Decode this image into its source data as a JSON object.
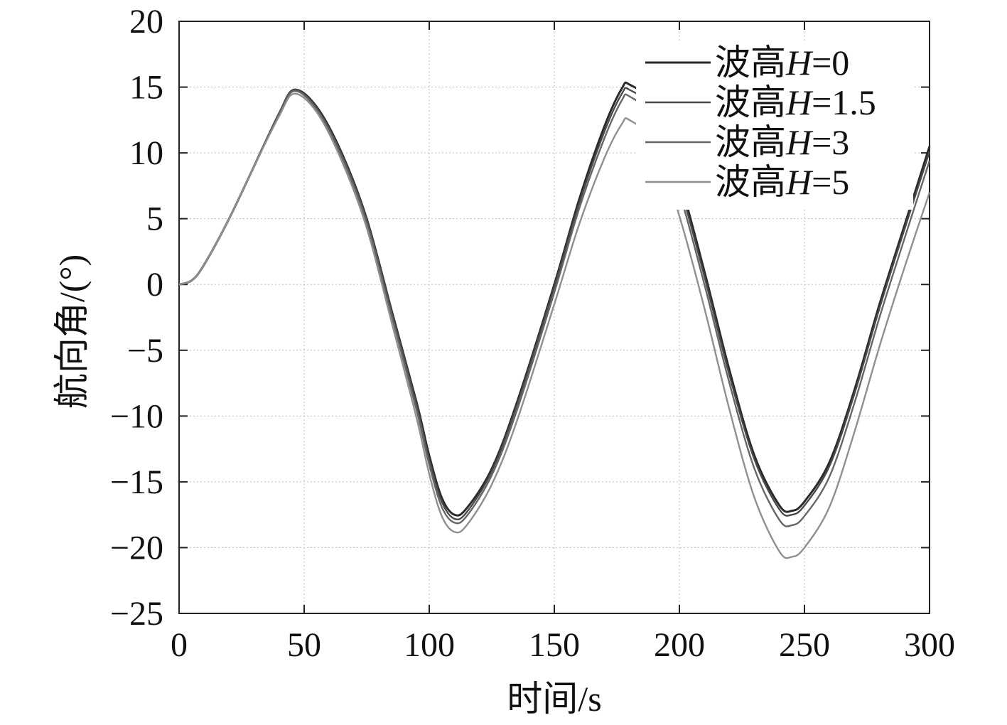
{
  "chart_data": {
    "type": "line",
    "title": "",
    "xlabel": "时间/s",
    "ylabel": "航向角/(°)",
    "xlim": [
      0,
      300
    ],
    "ylim": [
      -25,
      20
    ],
    "xticks": [
      0,
      50,
      100,
      150,
      200,
      250,
      300
    ],
    "yticks": [
      20,
      15,
      10,
      5,
      0,
      -5,
      -10,
      -15,
      -20,
      -25
    ],
    "xtick_labels": [
      "0",
      "50",
      "100",
      "150",
      "200",
      "250",
      "300"
    ],
    "ytick_labels": [
      "20",
      "15",
      "10",
      "5",
      "0",
      "−5",
      "−10",
      "−15",
      "−20",
      "−25"
    ],
    "grid": true,
    "legend_position": "top-right",
    "series": [
      {
        "name_prefix": "波高",
        "name_var": "H",
        "name_value": "=0",
        "color": "#2a2a2a",
        "x": [
          0,
          5,
          10,
          20,
          30,
          40,
          46,
          55,
          65,
          75,
          85,
          95,
          100,
          105,
          110,
          115,
          125,
          135,
          150,
          160,
          170,
          177,
          180,
          190,
          200,
          210,
          220,
          230,
          240,
          245,
          250,
          260,
          270,
          280,
          290,
          300
        ],
        "y": [
          0,
          0.3,
          1.5,
          5,
          9,
          13,
          14.8,
          13.5,
          10,
          5,
          -2,
          -9,
          -13,
          -16.2,
          -17.5,
          -17,
          -14,
          -9,
          0,
          6.5,
          12,
          14.9,
          15.2,
          13.5,
          8,
          1,
          -6.5,
          -13,
          -16.8,
          -17.2,
          -16.5,
          -13.5,
          -8,
          -1.5,
          4.5,
          10.5
        ]
      },
      {
        "name_prefix": "波高",
        "name_var": "H",
        "name_value": "=1.5",
        "color": "#4a4a4a",
        "x": [
          0,
          5,
          10,
          20,
          30,
          40,
          46,
          55,
          65,
          75,
          85,
          95,
          100,
          105,
          110,
          115,
          125,
          135,
          150,
          160,
          170,
          177,
          180,
          190,
          200,
          210,
          220,
          230,
          240,
          245,
          250,
          260,
          270,
          280,
          290,
          300
        ],
        "y": [
          0,
          0.3,
          1.5,
          5,
          9,
          13,
          14.8,
          13.4,
          9.9,
          4.9,
          -2.1,
          -9.2,
          -13.3,
          -16.5,
          -17.8,
          -17.3,
          -14.2,
          -9.2,
          -0.2,
          6.2,
          11.6,
          14.5,
          14.8,
          13.1,
          7.6,
          0.6,
          -6.9,
          -13.3,
          -17.1,
          -17.5,
          -16.8,
          -13.8,
          -8.3,
          -1.8,
          4.2,
          10.1
        ]
      },
      {
        "name_prefix": "波高",
        "name_var": "H",
        "name_value": "=3",
        "color": "#666666",
        "x": [
          0,
          5,
          10,
          20,
          30,
          40,
          46,
          55,
          65,
          75,
          85,
          95,
          100,
          105,
          110,
          115,
          125,
          135,
          150,
          160,
          170,
          177,
          180,
          190,
          200,
          210,
          220,
          230,
          240,
          245,
          250,
          260,
          270,
          280,
          290,
          300
        ],
        "y": [
          0,
          0.3,
          1.5,
          5,
          9,
          12.9,
          14.7,
          13.3,
          9.7,
          4.7,
          -2.4,
          -9.6,
          -13.7,
          -16.9,
          -18.1,
          -17.6,
          -14.5,
          -9.6,
          -0.6,
          5.8,
          11.1,
          14,
          14.3,
          12.5,
          7,
          0,
          -7.5,
          -14,
          -17.9,
          -18.3,
          -17.6,
          -14.6,
          -9,
          -2.5,
          3.5,
          9.4
        ]
      },
      {
        "name_prefix": "波高",
        "name_var": "H",
        "name_value": "=5",
        "color": "#8f8f8f",
        "x": [
          0,
          5,
          10,
          20,
          30,
          40,
          46,
          55,
          65,
          75,
          85,
          95,
          100,
          105,
          110,
          115,
          125,
          135,
          150,
          160,
          170,
          177,
          180,
          190,
          200,
          210,
          220,
          230,
          240,
          245,
          250,
          260,
          270,
          280,
          290,
          300
        ],
        "y": [
          0,
          0.3,
          1.5,
          5,
          9,
          12.8,
          14.5,
          13.1,
          9.4,
          4.3,
          -2.9,
          -10.2,
          -14.4,
          -17.6,
          -18.8,
          -18.3,
          -15.2,
          -10.4,
          -1.5,
          4.6,
          9.6,
          12.2,
          12.5,
          10.7,
          5.2,
          -1.8,
          -9.5,
          -16.2,
          -20.3,
          -20.7,
          -20,
          -16.9,
          -11.2,
          -4.7,
          1.3,
          7
        ]
      }
    ]
  }
}
